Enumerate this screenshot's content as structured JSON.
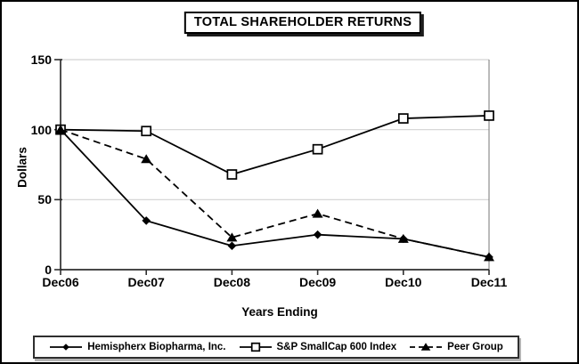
{
  "chart_data": {
    "type": "line",
    "title": "TOTAL SHAREHOLDER RETURNS",
    "xlabel": "Years Ending",
    "ylabel": "Dollars",
    "categories": [
      "Dec06",
      "Dec07",
      "Dec08",
      "Dec09",
      "Dec10",
      "Dec11"
    ],
    "ylim": [
      0,
      150
    ],
    "yticks": [
      0,
      50,
      100,
      150
    ],
    "grid": true,
    "legend_position": "bottom",
    "series": [
      {
        "name": "Hemispherx Biopharma, Inc.",
        "values": [
          100,
          35,
          17,
          25,
          22,
          9
        ],
        "marker": "diamond",
        "line_style": "solid",
        "color": "#000000"
      },
      {
        "name": "S&P SmallCap 600 Index",
        "values": [
          100,
          99,
          68,
          86,
          108,
          110
        ],
        "marker": "square-open",
        "line_style": "solid",
        "color": "#000000"
      },
      {
        "name": "Peer Group",
        "values": [
          100,
          79,
          23,
          40,
          22,
          9
        ],
        "marker": "triangle",
        "line_style": "dashed",
        "color": "#000000"
      }
    ]
  },
  "colors": {
    "grid_line": "#d2d2d2",
    "axis": "#2e2e2e",
    "right_border": "#8c8c8c",
    "series_line": "#000000",
    "background": "#ffffff"
  }
}
